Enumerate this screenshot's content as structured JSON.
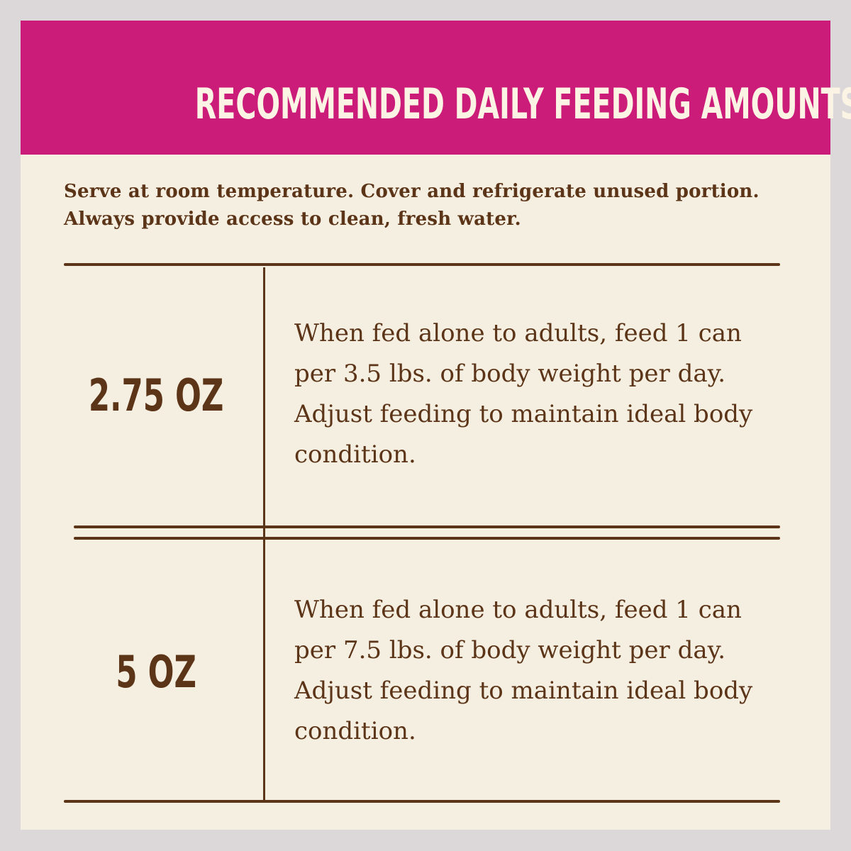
{
  "header": {
    "title": "RECOMMENDED DAILY FEEDING AMOUNTS:"
  },
  "intro": "Serve at room temperature. Cover and refrigerate unused portion. Always provide access to clean, fresh water.",
  "rows": [
    {
      "amount": "2.75 OZ",
      "description": "When fed alone to adults, feed 1 can per 3.5 lbs. of body weight per day. Adjust feeding to maintain ideal body condition."
    },
    {
      "amount": "5 OZ",
      "description": "When fed alone to adults, feed 1 can per 7.5 lbs. of body weight per day. Adjust feeding to maintain ideal body condition."
    }
  ],
  "colors": {
    "background": "#dcd8d9",
    "header": "#cc1c7a",
    "paper": "#f4efe1",
    "text": "#5c3418",
    "title_text": "#fbf3e3"
  }
}
